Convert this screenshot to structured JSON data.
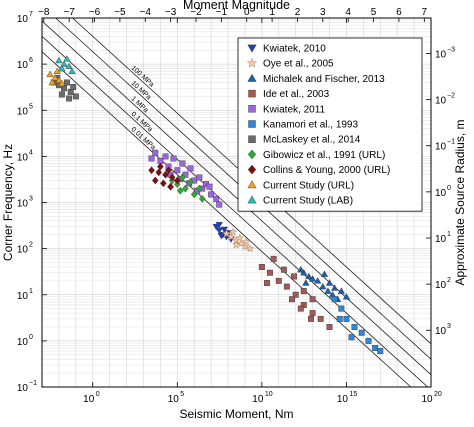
{
  "chart_data": {
    "type": "scatter",
    "title": "",
    "top_axis": {
      "label": "Moment Magnitude",
      "ticks": [
        "−8",
        "−7",
        "−6",
        "−5",
        "−4",
        "−3",
        "−2",
        "−1",
        "0",
        "1",
        "2",
        "3",
        "4",
        "5",
        "6",
        "7"
      ],
      "range": [
        -8,
        7
      ]
    },
    "xlabel": "Seismic Moment, Nm",
    "ylabel": "Corner Frequency, Hz",
    "right_ylabel": "Approximate Source Radius, m",
    "x_scale": "log",
    "y_scale": "log",
    "xlim": [
      0.001,
      1e+20
    ],
    "ylim": [
      0.1,
      10000000.0
    ],
    "grid": true,
    "x_ticks": [
      {
        "value": 1,
        "label": "10",
        "exp": "0"
      },
      {
        "value": 100000.0,
        "label": "10",
        "exp": "5"
      },
      {
        "value": 10000000000.0,
        "label": "10",
        "exp": "10"
      },
      {
        "value": 1000000000000000.0,
        "label": "10",
        "exp": "15"
      },
      {
        "value": 1e+20,
        "label": "10",
        "exp": "20"
      }
    ],
    "y_ticks": [
      {
        "value": 0.1,
        "label": "10",
        "exp": "−1"
      },
      {
        "value": 1,
        "label": "10",
        "exp": "0"
      },
      {
        "value": 10,
        "label": "10",
        "exp": "1"
      },
      {
        "value": 100,
        "label": "10",
        "exp": "2"
      },
      {
        "value": 1000,
        "label": "10",
        "exp": "3"
      },
      {
        "value": 10000,
        "label": "10",
        "exp": "4"
      },
      {
        "value": 100000,
        "label": "10",
        "exp": "5"
      },
      {
        "value": 1000000,
        "label": "10",
        "exp": "6"
      },
      {
        "value": 10000000,
        "label": "10",
        "exp": "7"
      }
    ],
    "right_ticks": [
      {
        "label": "10",
        "exp": "−3",
        "y_value": 1700000.0
      },
      {
        "label": "10",
        "exp": "−2",
        "y_value": 170000.0
      },
      {
        "label": "10",
        "exp": "−1",
        "y_value": 17000.0
      },
      {
        "label": "10",
        "exp": "0",
        "y_value": 1700
      },
      {
        "label": "10",
        "exp": "1",
        "y_value": 170
      },
      {
        "label": "10",
        "exp": "2",
        "y_value": 17
      },
      {
        "label": "10",
        "exp": "3",
        "y_value": 1.7
      }
    ],
    "stress_drop_lines": [
      {
        "label": "100 MPa",
        "fc_at_M0_1": 4000000.0
      },
      {
        "label": "10 MPa",
        "fc_at_M0_1": 1860000.0
      },
      {
        "label": "1 MPa",
        "fc_at_M0_1": 860000.0
      },
      {
        "label": "0.1 MPa",
        "fc_at_M0_1": 400000.0
      },
      {
        "label": "0.01 MPa",
        "fc_at_M0_1": 186000.0
      }
    ],
    "legend_position": "top-right",
    "series": [
      {
        "name": "Kwiatek, 2010",
        "marker": "triangle-down",
        "color": "#1f3fbf",
        "points": [
          [
            20000000.0,
            300
          ],
          [
            30000000.0,
            250
          ],
          [
            50000000.0,
            200
          ],
          [
            80000000.0,
            180
          ],
          [
            150000000.0,
            160
          ],
          [
            30000000.0,
            330
          ],
          [
            60000000.0,
            260
          ],
          [
            100000000.0,
            220
          ],
          [
            40000000.0,
            190
          ]
        ]
      },
      {
        "name": "Oye et al., 2005",
        "marker": "star",
        "color": "#f5c6a8",
        "points": [
          [
            80000000.0,
            210
          ],
          [
            150000000.0,
            180
          ],
          [
            300000000.0,
            150
          ],
          [
            600000000.0,
            130
          ],
          [
            1000000000.0,
            110
          ],
          [
            200000000.0,
            230
          ],
          [
            500000000.0,
            170
          ],
          [
            1200000000.0,
            140
          ],
          [
            2000000000.0,
            100
          ],
          [
            300000000.0,
            120
          ]
        ]
      },
      {
        "name": "Michalek and Fischer, 2013",
        "marker": "triangle-up",
        "color": "#1f5fa8",
        "points": [
          [
            3000000000000.0,
            30
          ],
          [
            6000000000000.0,
            25
          ],
          [
            10000000000000.0,
            22
          ],
          [
            20000000000000.0,
            20
          ],
          [
            40000000000000.0,
            15
          ],
          [
            80000000000000.0,
            12
          ],
          [
            150000000000000.0,
            10
          ],
          [
            300000000000000.0,
            8
          ],
          [
            50000000000000.0,
            28
          ],
          [
            100000000000000.0,
            18
          ],
          [
            200000000000000.0,
            14
          ],
          [
            500000000000000.0,
            12
          ],
          [
            1000000000000000.0,
            9
          ],
          [
            2000000000000.0,
            35
          ],
          [
            4000000000000.0,
            18
          ]
        ]
      },
      {
        "name": "Ide et al., 2003",
        "marker": "square",
        "color": "#a05a5a",
        "points": [
          [
            10000000000.0,
            40
          ],
          [
            30000000000.0,
            30
          ],
          [
            100000000000.0,
            20
          ],
          [
            300000000000.0,
            15
          ],
          [
            1000000000000.0,
            10
          ],
          [
            3000000000000.0,
            6
          ],
          [
            10000000000000.0,
            4
          ],
          [
            30000000000000.0,
            3
          ],
          [
            100000000000000.0,
            2
          ],
          [
            50000000000.0,
            60
          ],
          [
            200000000000.0,
            35
          ],
          [
            800000000000.0,
            25
          ],
          [
            3000000000000.0,
            12
          ],
          [
            10000000000000.0,
            8
          ],
          [
            20000000000.0,
            18
          ],
          [
            600000000000.0,
            8
          ],
          [
            2000000000000.0,
            5
          ],
          [
            8000000000000.0,
            3
          ]
        ]
      },
      {
        "name": "Kwiatek, 2011",
        "marker": "square",
        "color": "#9966dd",
        "points": [
          [
            3000.0,
            9000
          ],
          [
            10000.0,
            8000
          ],
          [
            30000.0,
            6000
          ],
          [
            100000.0,
            5000
          ],
          [
            300000.0,
            4000
          ],
          [
            1000000.0,
            3000
          ],
          [
            3000000.0,
            2000
          ],
          [
            10000000.0,
            1500
          ],
          [
            5000.0,
            12000
          ],
          [
            20000.0,
            10000
          ],
          [
            60000.0,
            9000
          ],
          [
            200000.0,
            7000
          ],
          [
            600000.0,
            5500
          ],
          [
            2000000.0,
            3500
          ],
          [
            5000000.0,
            2500
          ],
          [
            20000000.0,
            1200
          ],
          [
            40000.0,
            4000
          ],
          [
            150000.0,
            3200
          ],
          [
            500000.0,
            2600
          ],
          [
            1500000.0,
            1800
          ],
          [
            8000000.0,
            2200
          ],
          [
            30000000.0,
            900
          ]
        ]
      },
      {
        "name": "Kanamori et al., 1993",
        "marker": "square",
        "color": "#2f86d6",
        "points": [
          [
            200000000000000.0,
            8
          ],
          [
            500000000000000.0,
            5
          ],
          [
            1000000000000000.0,
            3
          ],
          [
            3000000000000000.0,
            2
          ],
          [
            8000000000000000.0,
            1.5
          ],
          [
            2e+16,
            1
          ],
          [
            5e+16,
            0.7
          ],
          [
            1e+17,
            0.6
          ],
          [
            400000000000000.0,
            3
          ],
          [
            2000000000000000.0,
            1.2
          ]
        ]
      },
      {
        "name": "McLaskey et al., 2014",
        "marker": "square",
        "color": "#6b6b6b",
        "points": [
          [
            0.005,
            400000.0
          ],
          [
            0.01,
            350000.0
          ],
          [
            0.02,
            300000.0
          ],
          [
            0.05,
            250000.0
          ],
          [
            0.1,
            200000.0
          ],
          [
            0.008,
            500000.0
          ],
          [
            0.03,
            400000.0
          ],
          [
            0.07,
            320000.0
          ],
          [
            0.015,
            220000.0
          ],
          [
            0.04,
            180000.0
          ]
        ]
      },
      {
        "name": "Gibowicz et al., 1991 (URL)",
        "marker": "diamond",
        "color": "#2eaa2e",
        "points": [
          [
            50000.0,
            3000
          ],
          [
            100000.0,
            2500
          ],
          [
            300000.0,
            2000
          ],
          [
            1000000.0,
            1500
          ],
          [
            3000000.0,
            1200
          ],
          [
            200000.0,
            3500
          ],
          [
            600000.0,
            2800
          ],
          [
            2000000.0,
            2000
          ],
          [
            40000.0,
            2200
          ],
          [
            150000.0,
            1800
          ]
        ]
      },
      {
        "name": "Collins & Young, 2000 (URL)",
        "marker": "diamond",
        "color": "#7a1010",
        "points": [
          [
            3000.0,
            5000
          ],
          [
            8000.0,
            4500
          ],
          [
            20000.0,
            4000
          ],
          [
            50000.0,
            3500
          ],
          [
            100000.0,
            3000
          ],
          [
            5000.0,
            3000
          ],
          [
            15000.0,
            2600
          ],
          [
            40000.0,
            2200
          ],
          [
            10000.0,
            6000
          ],
          [
            30000.0,
            5000
          ]
        ]
      },
      {
        "name": "Current Study (URL)",
        "marker": "triangle-up",
        "color": "#f0a020",
        "points": [
          [
            0.003,
            600000.0
          ],
          [
            0.006,
            500000.0
          ],
          [
            0.01,
            450000.0
          ],
          [
            0.004,
            400000.0
          ],
          [
            0.008,
            700000.0
          ],
          [
            0.015,
            380000.0
          ]
        ]
      },
      {
        "name": "Current Study (LAB)",
        "marker": "triangle-up",
        "color": "#30b8b0",
        "points": [
          [
            0.01,
            1200000.0
          ],
          [
            0.02,
            1000000.0
          ],
          [
            0.04,
            900000.0
          ],
          [
            0.015,
            800000.0
          ],
          [
            0.03,
            1300000.0
          ],
          [
            0.06,
            700000.0
          ]
        ]
      }
    ]
  }
}
